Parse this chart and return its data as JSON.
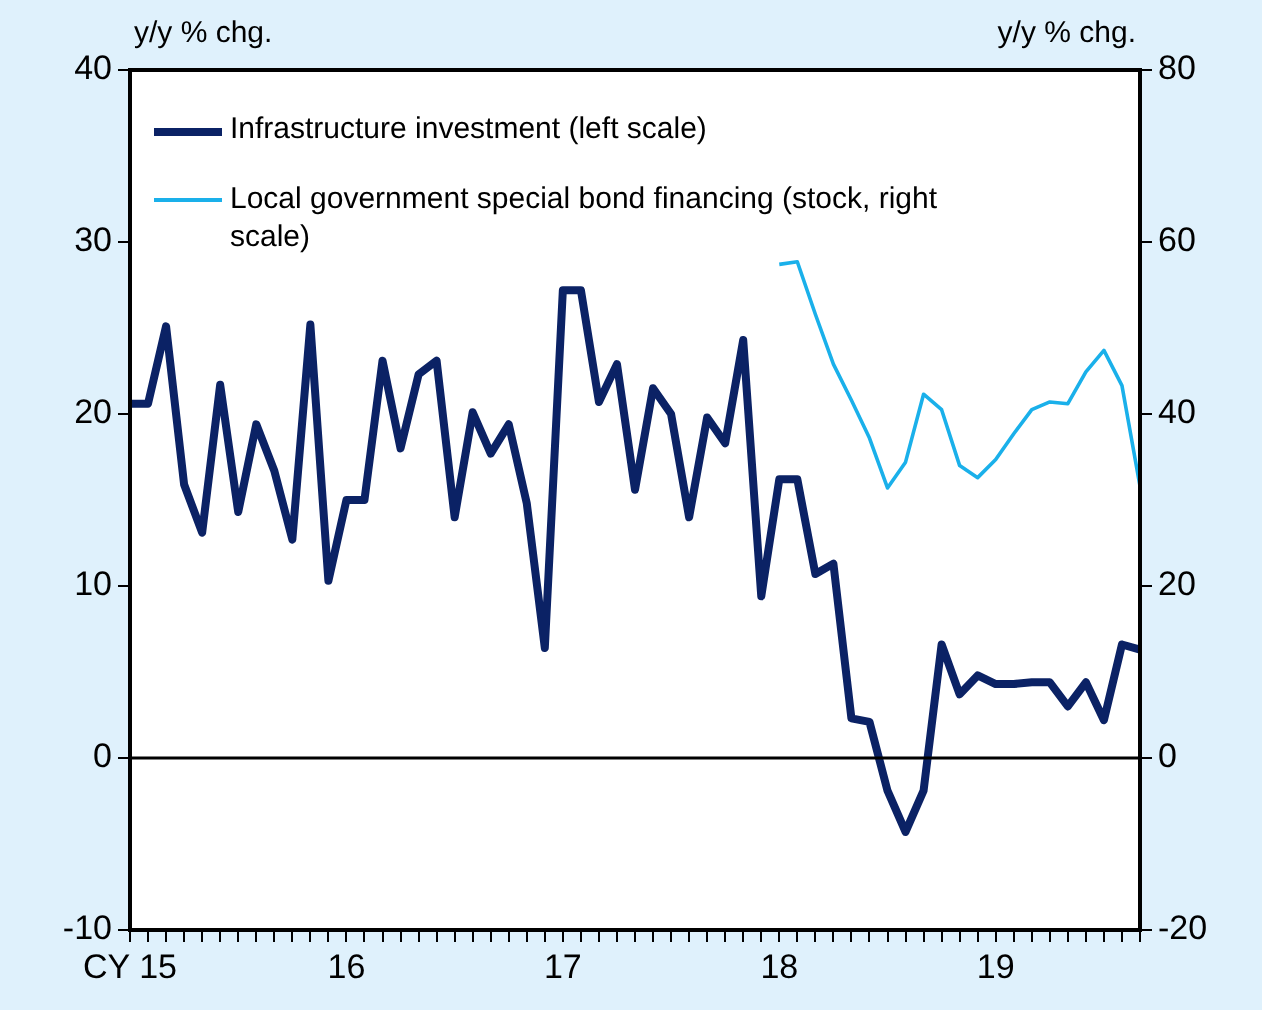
{
  "chart_data": {
    "type": "line",
    "ylabel": "y/y % chg.",
    "y2label": "y/y % chg.",
    "categories": [
      "CY 15",
      null,
      null,
      null,
      null,
      null,
      null,
      null,
      null,
      null,
      null,
      null,
      "16",
      null,
      null,
      null,
      null,
      null,
      null,
      null,
      null,
      null,
      null,
      null,
      "17",
      null,
      null,
      null,
      null,
      null,
      null,
      null,
      null,
      null,
      null,
      null,
      "18",
      null,
      null,
      null,
      null,
      null,
      null,
      null,
      null,
      null,
      null,
      null,
      "19",
      null,
      null,
      null,
      null,
      null,
      null,
      null,
      null
    ],
    "series": [
      {
        "name": "Infrastructure investment (left scale)",
        "color": "#0b2265",
        "values": [
          20.6,
          20.6,
          25.1,
          15.9,
          13.1,
          21.7,
          14.3,
          19.4,
          16.7,
          12.7,
          25.2,
          10.3,
          15.0,
          15.0,
          23.1,
          18.0,
          22.3,
          23.1,
          14.0,
          20.1,
          17.7,
          19.4,
          14.8,
          6.4,
          27.2,
          27.2,
          20.7,
          22.9,
          15.6,
          21.5,
          20.0,
          14.0,
          19.8,
          18.3,
          24.3,
          9.4,
          16.2,
          16.2,
          10.7,
          11.3,
          2.3,
          2.1,
          -1.9,
          -4.3,
          -1.9,
          6.6,
          3.7,
          4.8,
          4.3,
          4.3,
          4.4,
          4.4,
          3.0,
          4.4,
          2.2,
          6.6,
          6.3
        ]
      },
      {
        "name": "Local government special bond financing (stock, right scale)",
        "color": "#1ab0ea",
        "axis": "y2",
        "values": [
          null,
          null,
          null,
          null,
          null,
          null,
          null,
          null,
          null,
          null,
          null,
          null,
          null,
          null,
          null,
          null,
          null,
          null,
          null,
          null,
          null,
          null,
          null,
          null,
          null,
          null,
          null,
          null,
          null,
          null,
          null,
          null,
          null,
          null,
          null,
          null,
          57.4,
          57.7,
          51.6,
          45.8,
          41.6,
          37.2,
          31.4,
          34.4,
          42.3,
          40.5,
          34.0,
          32.6,
          34.7,
          37.7,
          40.5,
          41.4,
          41.2,
          44.9,
          47.4,
          43.3,
          31.6
        ]
      }
    ],
    "ylim": [
      -10,
      40
    ],
    "yticks": [
      -10,
      0,
      10,
      20,
      30,
      40
    ],
    "y2lim": [
      -20,
      80
    ],
    "y2ticks": [
      -20,
      0,
      20,
      40,
      60,
      80
    ],
    "ref_lines": [
      {
        "axis": "y",
        "value": 0,
        "color": "#000000"
      }
    ],
    "grid": false,
    "legend": "top left",
    "marker": "none",
    "line_style": "solid"
  }
}
